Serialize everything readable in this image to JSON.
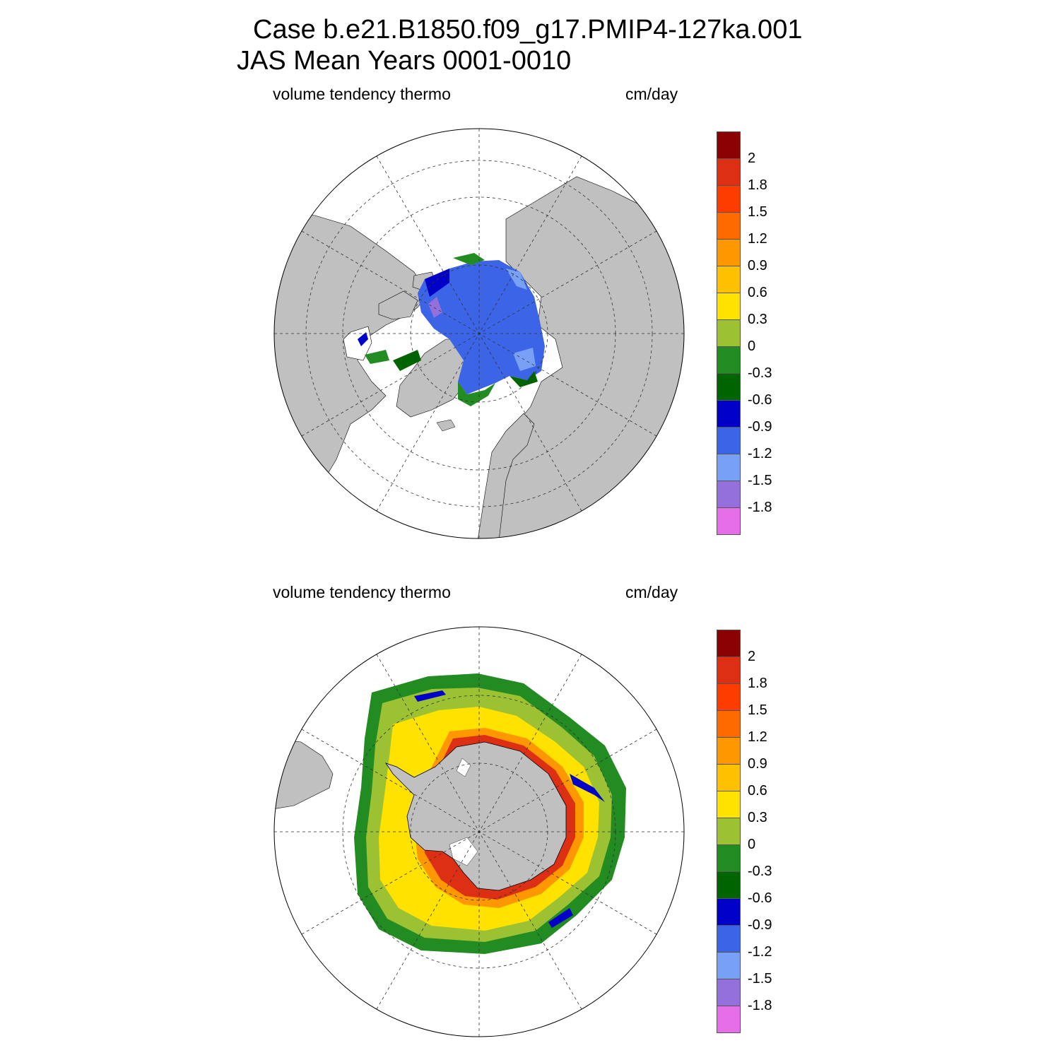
{
  "title": {
    "line1": "Case b.e21.B1850.f09_g17.PMIP4-127ka.001",
    "line2": "JAS Mean   Years 0001-0010"
  },
  "panels": [
    {
      "name": "north",
      "left_label": "volume tendency thermo",
      "right_label": "cm/day"
    },
    {
      "name": "south",
      "left_label": "volume tendency thermo",
      "right_label": "cm/day"
    }
  ],
  "colorbar": {
    "labels": [
      "2",
      "1.8",
      "1.5",
      "1.2",
      "0.9",
      "0.6",
      "0.3",
      "0",
      "-0.3",
      "-0.6",
      "-0.9",
      "-1.2",
      "-1.5",
      "-1.8"
    ],
    "colors": [
      "#8b0000",
      "#dc2f14",
      "#ff3c00",
      "#ff6a00",
      "#ff9700",
      "#ffc000",
      "#ffe200",
      "#9cc132",
      "#228b22",
      "#006400",
      "#0000c8",
      "#3c64e6",
      "#78a0f5",
      "#9370db",
      "#e66ee6"
    ]
  },
  "colors": {
    "land": "#c0c0c0",
    "ocean": "#ffffff"
  }
}
